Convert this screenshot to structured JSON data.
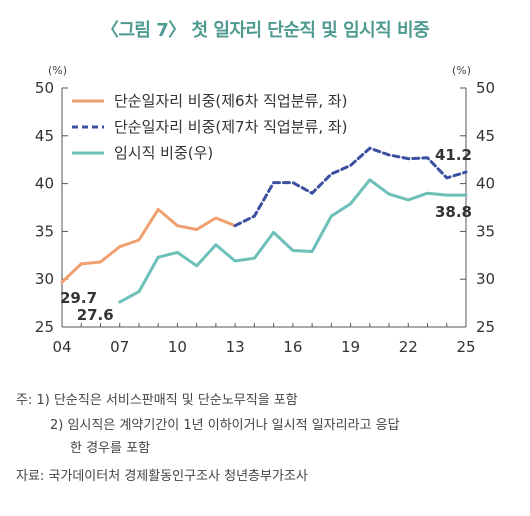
{
  "chart_data": {
    "type": "line",
    "title": "〈그림 7〉 첫 일자리 단순직 및 임시직 비중",
    "left_unit": "(%)",
    "right_unit": "(%)",
    "xlim": [
      2004,
      2025
    ],
    "ylim": [
      25,
      50
    ],
    "x_ticks": [
      "04",
      "07",
      "10",
      "13",
      "16",
      "19",
      "22",
      "25"
    ],
    "y_ticks": [
      "50",
      "45",
      "40",
      "35",
      "30",
      "25"
    ],
    "grid": false,
    "legend_position": "top-left",
    "series": [
      {
        "name": "단순일자리 비중(제6차 직업분류, 좌)",
        "color": "#f0a070",
        "dash": "solid",
        "x": [
          2004,
          2005,
          2006,
          2007,
          2008,
          2009,
          2010,
          2011,
          2012,
          2013
        ],
        "y": [
          29.7,
          31.6,
          31.8,
          33.4,
          34.1,
          37.3,
          35.6,
          35.2,
          36.4,
          35.6
        ]
      },
      {
        "name": "단순일자리 비중(제7차 직업분류, 좌)",
        "color": "#3d4fa0",
        "dash": "dashed",
        "x": [
          2013,
          2014,
          2015,
          2016,
          2017,
          2018,
          2019,
          2020,
          2021,
          2022,
          2023,
          2024,
          2025
        ],
        "y": [
          35.6,
          36.6,
          40.1,
          40.1,
          39.0,
          41.0,
          41.9,
          43.7,
          43.0,
          42.6,
          42.7,
          40.6,
          41.2
        ]
      },
      {
        "name": "임시직 비중(우)",
        "color": "#6cc0b8",
        "dash": "solid",
        "x": [
          2007,
          2008,
          2009,
          2010,
          2011,
          2012,
          2013,
          2014,
          2015,
          2016,
          2017,
          2018,
          2019,
          2020,
          2021,
          2022,
          2023,
          2024,
          2025
        ],
        "y": [
          27.6,
          28.7,
          32.3,
          32.8,
          31.4,
          33.6,
          31.9,
          32.2,
          34.9,
          33.0,
          32.9,
          36.6,
          37.9,
          40.4,
          38.9,
          38.3,
          39.0,
          38.8,
          38.8
        ]
      }
    ],
    "annotations": [
      {
        "text": "29.7",
        "x": 2004,
        "y": 29.7
      },
      {
        "text": "27.6",
        "x": 2007,
        "y": 27.6
      },
      {
        "text": "41.2",
        "x": 2025,
        "y": 41.2
      },
      {
        "text": "38.8",
        "x": 2025,
        "y": 38.8
      }
    ]
  },
  "notes": {
    "line1": "주: 1) 단순직은 서비스판매직 및 단순노무직을 포함",
    "line2": "2) 임시직은 계약기간이 1년 이하이거나 일시적 일자리라고 응답",
    "line3": "한 경우를 포함",
    "source": "자료: 국가데이터처 경제활동인구조사 청년층부가조사"
  }
}
